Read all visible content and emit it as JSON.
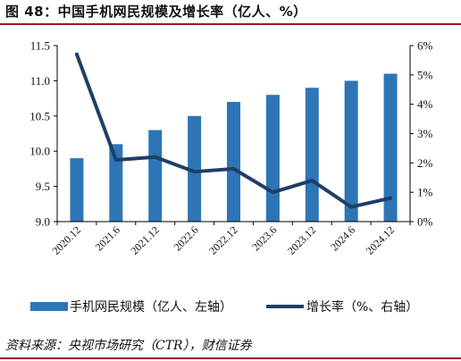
{
  "title": "图 48：中国手机网民规模及增长率（亿人、%）",
  "source": "资料来源：央视市场研究（CTR），财信证券",
  "colors": {
    "bar": "#2e75b6",
    "line": "#1f3f66",
    "axis": "#000000",
    "rule": "#9a1f1f"
  },
  "chart_data": {
    "type": "bar",
    "categories": [
      "2020.12",
      "2021.6",
      "2021.12",
      "2022.6",
      "2022.12",
      "2023.6",
      "2023.12",
      "2024.6",
      "2024.12"
    ],
    "series": [
      {
        "name": "手机网民规模（亿人、左轴）",
        "type": "bar",
        "axis": "left",
        "values": [
          9.9,
          10.1,
          10.3,
          10.5,
          10.7,
          10.8,
          10.9,
          11.0,
          11.1
        ]
      },
      {
        "name": "增长率（%、右轴）",
        "type": "line",
        "axis": "right",
        "values": [
          5.7,
          2.1,
          2.2,
          1.7,
          1.8,
          1.0,
          1.4,
          0.5,
          0.8
        ]
      }
    ],
    "y_left": {
      "lim": [
        9.0,
        11.5
      ],
      "ticks": [
        "9.0",
        "9.5",
        "10.0",
        "10.5",
        "11.0",
        "11.5"
      ]
    },
    "y_right": {
      "lim": [
        0,
        6
      ],
      "ticks": [
        "0%",
        "1%",
        "2%",
        "3%",
        "4%",
        "5%",
        "6%"
      ]
    },
    "grid": false,
    "legend_position": "bottom"
  }
}
